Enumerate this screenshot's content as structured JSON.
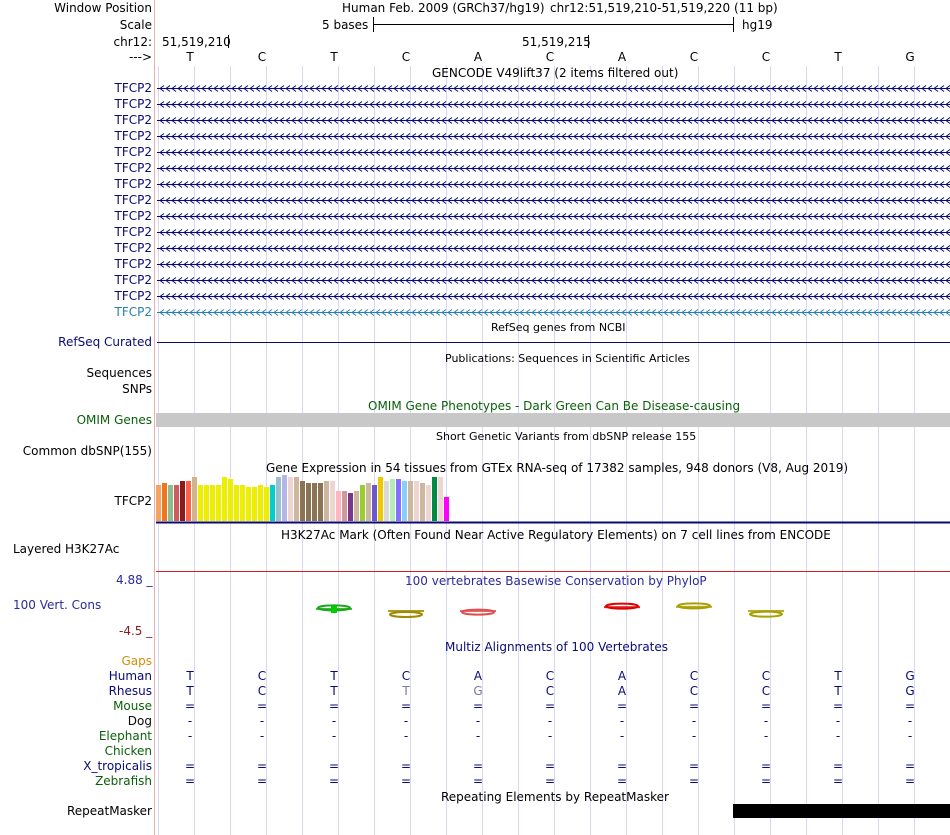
{
  "header": {
    "window_position_label": "Window Position",
    "scale_label": "Scale",
    "chr_label": "chr12:",
    "arrow_label": "--->",
    "assembly_text": "Human Feb. 2009 (GRCh37/hg19)",
    "position_text": "chr12:51,519,210-51,519,220 (11 bp)",
    "scale_bar_text": "5 bases",
    "scale_db": "hg19",
    "coord_start": "51,519,210",
    "coord_mid": "51,519,215"
  },
  "sequence": [
    "T",
    "C",
    "T",
    "C",
    "A",
    "C",
    "A",
    "C",
    "C",
    "T",
    "G"
  ],
  "gencode": {
    "title": "GENCODE V49lift37 (2 items filtered out)",
    "genes": [
      "TFCP2",
      "TFCP2",
      "TFCP2",
      "TFCP2",
      "TFCP2",
      "TFCP2",
      "TFCP2",
      "TFCP2",
      "TFCP2",
      "TFCP2",
      "TFCP2",
      "TFCP2",
      "TFCP2",
      "TFCP2",
      "TFCP2"
    ],
    "dark_color": "#0a0a73",
    "light_color": "#2a7fb0"
  },
  "refseq": {
    "title": "RefSeq genes from NCBI",
    "label": "RefSeq Curated"
  },
  "publications": {
    "title": "Publications: Sequences in Scientific Articles",
    "label": "Sequences"
  },
  "snps_label": "SNPs",
  "omim": {
    "title": "OMIM Gene Phenotypes - Dark Green Can Be Disease-causing",
    "label": "OMIM Genes",
    "color": "#0a5f0a"
  },
  "dbsnp": {
    "title": "Short Genetic Variants from dbSNP release 155",
    "label": "Common dbSNP(155)"
  },
  "gtex": {
    "title": "Gene Expression in 54 tissues from GTEx RNA-seq of 17382 samples, 948 donors (V8, Aug 2019)",
    "label": "TFCP2",
    "bars": [
      {
        "value": 36,
        "color": "#f4a460"
      },
      {
        "value": 38,
        "color": "#ee7621"
      },
      {
        "value": 36,
        "color": "#8fbc8f"
      },
      {
        "value": 36,
        "color": "#cd5c5c"
      },
      {
        "value": 40,
        "color": "#8b1a1a"
      },
      {
        "value": 40,
        "color": "#ff6347"
      },
      {
        "value": 44,
        "color": "#d2b48c"
      },
      {
        "value": 36,
        "color": "#eeee00"
      },
      {
        "value": 36,
        "color": "#eeee00"
      },
      {
        "value": 36,
        "color": "#eeee00"
      },
      {
        "value": 36,
        "color": "#eeee00"
      },
      {
        "value": 44,
        "color": "#eeee00"
      },
      {
        "value": 42,
        "color": "#eeee00"
      },
      {
        "value": 36,
        "color": "#eeee00"
      },
      {
        "value": 36,
        "color": "#eeee00"
      },
      {
        "value": 34,
        "color": "#eeee00"
      },
      {
        "value": 34,
        "color": "#eeee00"
      },
      {
        "value": 36,
        "color": "#eeee00"
      },
      {
        "value": 34,
        "color": "#eeee00"
      },
      {
        "value": 36,
        "color": "#00cdcd"
      },
      {
        "value": 44,
        "color": "#9ac0cd"
      },
      {
        "value": 46,
        "color": "#b4b4e6"
      },
      {
        "value": 44,
        "color": "#eed5d2"
      },
      {
        "value": 44,
        "color": "#cdb79e"
      },
      {
        "value": 40,
        "color": "#8b7355"
      },
      {
        "value": 38,
        "color": "#8b7355"
      },
      {
        "value": 38,
        "color": "#8b7355"
      },
      {
        "value": 38,
        "color": "#8b7355"
      },
      {
        "value": 40,
        "color": "#cdb79e"
      },
      {
        "value": 40,
        "color": "#eed5d2"
      },
      {
        "value": 30,
        "color": "#ffb6c1"
      },
      {
        "value": 30,
        "color": "#cd9b9b"
      },
      {
        "value": 28,
        "color": "#7a378b"
      },
      {
        "value": 30,
        "color": "#cdb79e"
      },
      {
        "value": 36,
        "color": "#9acd32"
      },
      {
        "value": 38,
        "color": "#cdb79e"
      },
      {
        "value": 36,
        "color": "#6959cd"
      },
      {
        "value": 44,
        "color": "#eec900"
      },
      {
        "value": 40,
        "color": "#d9d9d9"
      },
      {
        "value": 42,
        "color": "#b4eeb4"
      },
      {
        "value": 42,
        "color": "#8470ff"
      },
      {
        "value": 40,
        "color": "#87cefa"
      },
      {
        "value": 40,
        "color": "#cdb79e"
      },
      {
        "value": 40,
        "color": "#eed5d2"
      },
      {
        "value": 38,
        "color": "#cdb79e"
      },
      {
        "value": 36,
        "color": "#eed5d2"
      },
      {
        "value": 44,
        "color": "#008b45"
      },
      {
        "value": 44,
        "color": "#eed5d2"
      },
      {
        "value": 24,
        "color": "#ff00ff"
      }
    ]
  },
  "h3k27ac": {
    "title": "H3K27Ac Mark (Often Found Near Active Regulatory Elements) on 7 cell lines from ENCODE",
    "label": "Layered H3K27Ac"
  },
  "phylop": {
    "title": "100 vertebrates Basewise Conservation by PhyloP",
    "label": "100 Vert. Cons",
    "max_label": "4.88 _",
    "min_label": "-4.5 _",
    "max": 4.88,
    "min": -4.5,
    "values": [
      0,
      0,
      0.6,
      -1.3,
      -0.6,
      0,
      1.1,
      1.2,
      -1.2,
      0,
      0
    ],
    "colors": [
      "#000",
      "#000",
      "#1aa81a",
      "#a08a00",
      "#e05050",
      "#000",
      "#e00000",
      "#a8a000",
      "#a8a000",
      "#000",
      "#000"
    ]
  },
  "multiz": {
    "title": "Multiz Alignments of 100 Vertebrates",
    "gaps_label": "Gaps",
    "species": [
      {
        "name": "Human",
        "color": "#0a0a73",
        "bases": [
          "T",
          "C",
          "T",
          "C",
          "A",
          "C",
          "A",
          "C",
          "C",
          "T",
          "G"
        ],
        "base_colors": []
      },
      {
        "name": "Rhesus",
        "color": "#0a0a73",
        "bases": [
          "T",
          "C",
          "T",
          "T",
          "G",
          "C",
          "A",
          "C",
          "C",
          "T",
          "G"
        ],
        "base_colors": [
          "",
          "",
          "",
          "#7a7a9a",
          "#7a7a9a",
          "",
          "",
          "",
          "",
          "",
          ""
        ]
      },
      {
        "name": "Mouse",
        "color": "#0a5f0a",
        "bases": [
          "=",
          "=",
          "=",
          "=",
          "=",
          "=",
          "=",
          "=",
          "=",
          "=",
          "="
        ],
        "base_colors": []
      },
      {
        "name": "Dog",
        "color": "#0a0a0a",
        "bases": [
          "-",
          "-",
          "-",
          "-",
          "-",
          "-",
          "-",
          "-",
          "-",
          "-",
          "-"
        ],
        "base_colors": []
      },
      {
        "name": "Elephant",
        "color": "#0a5f0a",
        "bases": [
          "-",
          "-",
          "-",
          "-",
          "-",
          "-",
          "-",
          "-",
          "-",
          "-",
          "-"
        ],
        "base_colors": []
      },
      {
        "name": "Chicken",
        "color": "#0a5f0a",
        "bases": [
          "",
          "",
          "",
          "",
          "",
          "",
          "",
          "",
          "",
          "",
          ""
        ],
        "base_colors": []
      },
      {
        "name": "X_tropicalis",
        "color": "#0a0a73",
        "bases": [
          "=",
          "=",
          "=",
          "=",
          "=",
          "=",
          "=",
          "=",
          "=",
          "=",
          "="
        ],
        "base_colors": []
      },
      {
        "name": "Zebrafish",
        "color": "#0a5f0a",
        "bases": [
          "=",
          "=",
          "=",
          "=",
          "=",
          "=",
          "=",
          "=",
          "=",
          "=",
          "="
        ],
        "base_colors": []
      }
    ]
  },
  "repeatmasker": {
    "title": "Repeating Elements by RepeatMasker",
    "label": "RepeatMasker"
  },
  "colors": {
    "navy": "#0a0a73",
    "gaps": "#d2900a",
    "phylop_blue": "#2a2a9a",
    "phylop_red": "#8b1a1a",
    "h3k_red": "#cd2020",
    "grid": "#d9d9ee",
    "omim_gray": "#c8c8c8"
  }
}
